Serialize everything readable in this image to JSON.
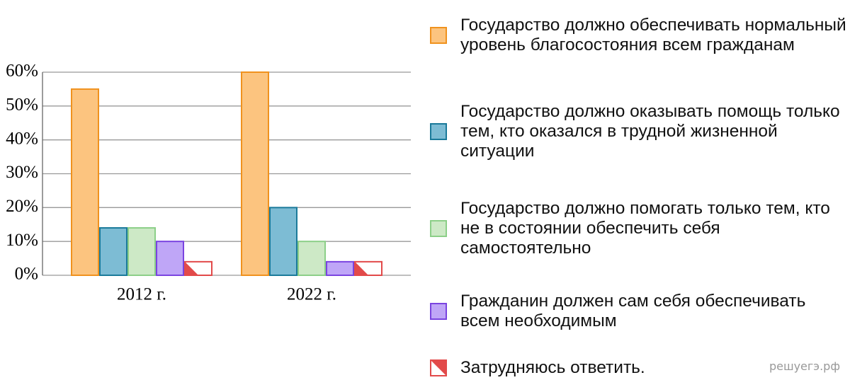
{
  "chart_data": {
    "type": "bar",
    "categories": [
      "2012 г.",
      "2022 г."
    ],
    "series": [
      {
        "name": "Государство должно обеспечивать нормальный уровень благосостояния всем гражданам",
        "color": "#fcc47f",
        "edgecolor": "#f0921e",
        "values": [
          55,
          60
        ]
      },
      {
        "name": "Государство должно оказывать помощь только тем, кто оказался в трудной жизненной ситуации",
        "color": "#7dbcd4",
        "edgecolor": "#1a7a9a",
        "values": [
          14,
          20
        ]
      },
      {
        "name": "Государство должно помогать только тем, кто не в состоянии обеспечить себя самостоятельно",
        "color": "#cde9c6",
        "edgecolor": "#8ccf88",
        "values": [
          14,
          10
        ]
      },
      {
        "name": "Гражданин должен сам себя обеспечивать всем необходимым",
        "color": "#bfa6f7",
        "edgecolor": "#7a44e0",
        "values": [
          10,
          4
        ]
      },
      {
        "name": "Затрудняюсь ответить.",
        "color": "#ffffff",
        "edgecolor": "#e24a4a",
        "hatch": true,
        "values": [
          4,
          4
        ]
      }
    ],
    "ylim": [
      0,
      60
    ],
    "yticks": [
      {
        "value": 0,
        "label": "0%"
      },
      {
        "value": 10,
        "label": "10%"
      },
      {
        "value": 20,
        "label": "20%"
      },
      {
        "value": 30,
        "label": "30%"
      },
      {
        "value": 40,
        "label": "40%"
      },
      {
        "value": 50,
        "label": "50%"
      },
      {
        "value": 60,
        "label": "60%"
      }
    ],
    "grid": true,
    "legend": "right",
    "watermark": "решуегэ.рф"
  }
}
